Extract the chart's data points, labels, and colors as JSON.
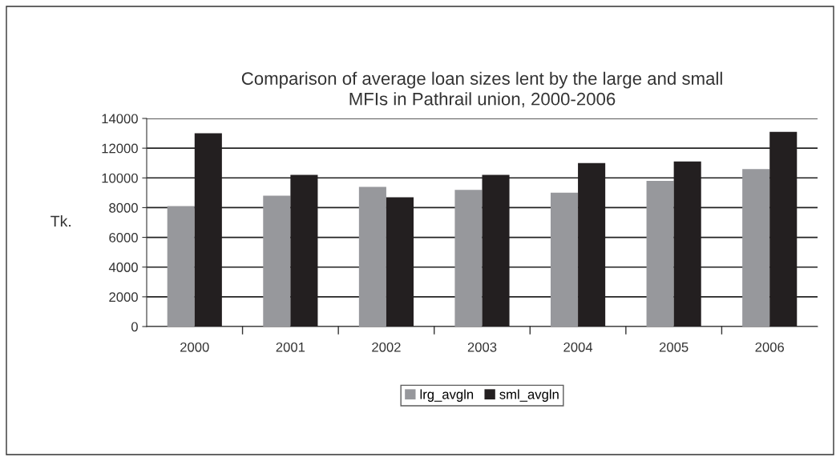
{
  "chart_data": {
    "type": "bar",
    "title": "Comparison of average loan sizes lent by the large and small\nMFIs in Pathrail union, 2000-2006",
    "ylabel": "Tk.",
    "categories": [
      "2000",
      "2001",
      "2002",
      "2003",
      "2004",
      "2005",
      "2006"
    ],
    "series": [
      {
        "name": "lrg_avgln",
        "color": "#97989c",
        "values": [
          8100,
          8800,
          9400,
          9200,
          9000,
          9800,
          10600
        ]
      },
      {
        "name": "sml_avgln",
        "color": "#231f20",
        "values": [
          13000,
          10200,
          8700,
          10200,
          11000,
          11100,
          13100
        ]
      }
    ],
    "ylim": [
      0,
      14000
    ],
    "yticks": [
      0,
      2000,
      4000,
      6000,
      8000,
      10000,
      12000,
      14000
    ],
    "grid": "y",
    "legend": "bottom"
  }
}
